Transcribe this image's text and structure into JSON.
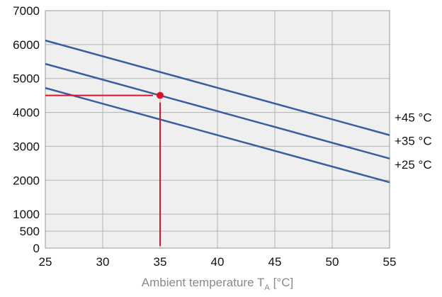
{
  "chart_data": {
    "type": "line",
    "title": "",
    "xlabel": "Ambient temperature T",
    "xlabel_subscript": "A",
    "xlabel_unit": "[°C]",
    "ylabel": "",
    "xlim": [
      25,
      55
    ],
    "ylim": [
      0,
      7000
    ],
    "xticks": [
      25,
      30,
      35,
      40,
      45,
      50,
      55
    ],
    "yticks": [
      0,
      500,
      1000,
      2000,
      3000,
      4000,
      5000,
      6000,
      7000
    ],
    "grid": true,
    "series": [
      {
        "name": "+45 °C",
        "x": [
          25,
          55
        ],
        "y": [
          6120,
          3330
        ],
        "color": "#3a5da0"
      },
      {
        "name": "+35 °C",
        "x": [
          25,
          55
        ],
        "y": [
          5430,
          2640
        ],
        "color": "#3a5da0"
      },
      {
        "name": "+25 °C",
        "x": [
          25,
          55
        ],
        "y": [
          4720,
          1940
        ],
        "color": "#3a5da0"
      }
    ],
    "annotation": {
      "point": {
        "x": 35,
        "y": 4500
      },
      "horizontal_from_x": 25,
      "vertical_to_y": 60,
      "color": "#d7162a"
    }
  }
}
